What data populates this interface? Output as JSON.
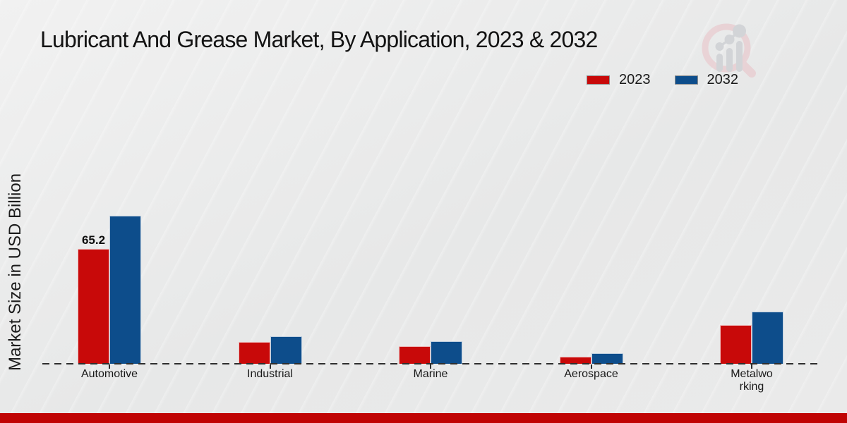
{
  "header": {
    "title": "Lubricant And Grease Market, By Application, 2023 & 2032"
  },
  "brand": {
    "logo": "magnifier-bar-chart-logo",
    "ring_color": "#e8cdd1",
    "glyph_color": "#d2d4d7"
  },
  "legend": {
    "items": [
      {
        "label": "2023",
        "color": "#c80909"
      },
      {
        "label": "2032",
        "color": "#0d4d8b"
      }
    ]
  },
  "yaxis": {
    "label": "Market Size in USD Billion"
  },
  "footer": {
    "bar_color": "#c00404"
  },
  "chart_data": {
    "type": "bar",
    "title": "Lubricant And Grease Market, By Application, 2023 & 2032",
    "categories": [
      "Automotive",
      "Industrial",
      "Marine",
      "Aerospace",
      "Metalworking"
    ],
    "category_display": [
      "Automotive",
      "Industrial",
      "Marine",
      "Aerospace",
      "Metalwo\nrking"
    ],
    "series": [
      {
        "name": "2023",
        "color": "#c80909",
        "values": [
          65.2,
          12.4,
          10.0,
          3.8,
          22.0
        ]
      },
      {
        "name": "2032",
        "color": "#0d4d8b",
        "values": [
          84.0,
          15.5,
          12.8,
          5.8,
          29.6
        ]
      }
    ],
    "xlabel": "",
    "ylabel": "Market Size in USD Billion",
    "ylim": [
      0,
      90
    ],
    "grid": false,
    "legend_position": "top-right",
    "baseline_style": "dashed",
    "data_labels": [
      {
        "series": "2023",
        "category": "Automotive",
        "text": "65.2"
      }
    ]
  }
}
